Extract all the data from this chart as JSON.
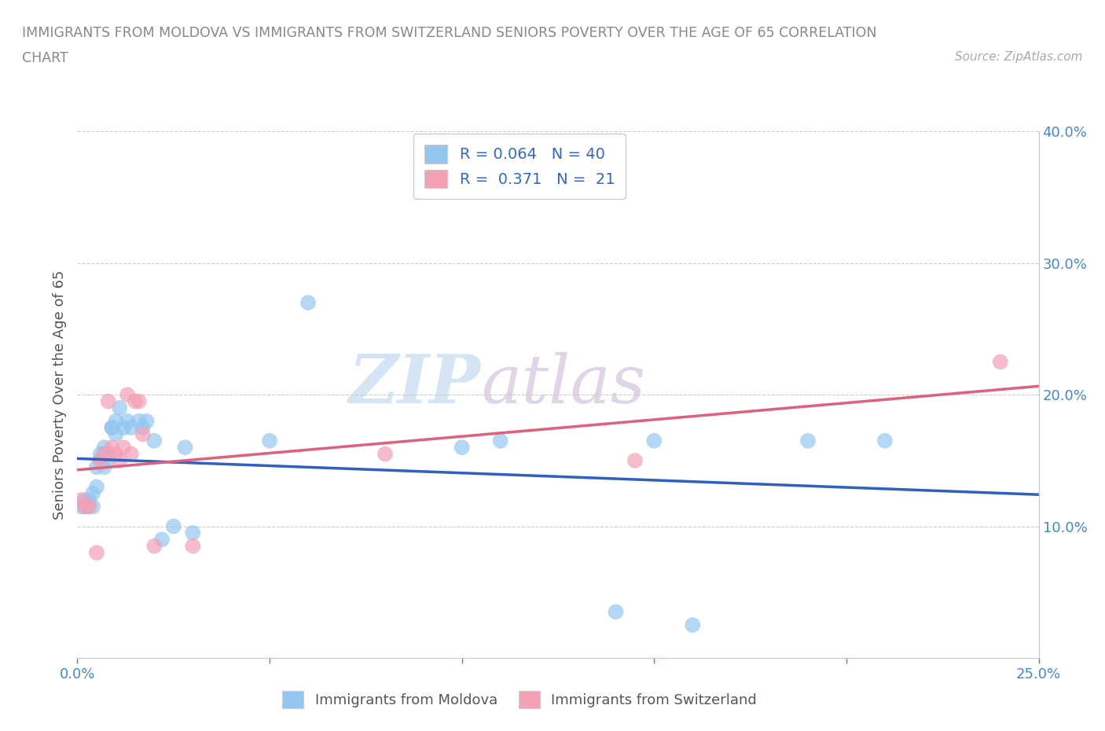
{
  "title_line1": "IMMIGRANTS FROM MOLDOVA VS IMMIGRANTS FROM SWITZERLAND SENIORS POVERTY OVER THE AGE OF 65 CORRELATION",
  "title_line2": "CHART",
  "source": "Source: ZipAtlas.com",
  "ylabel": "Seniors Poverty Over the Age of 65",
  "xlim": [
    0,
    0.25
  ],
  "ylim": [
    0,
    0.4
  ],
  "moldova_R": 0.064,
  "moldova_N": 40,
  "switzerland_R": 0.371,
  "switzerland_N": 21,
  "moldova_color": "#93c6f0",
  "switzerland_color": "#f5a0b5",
  "moldova_line_color": "#3060c0",
  "switzerland_line_color": "#e06080",
  "legend_label_moldova": "Immigrants from Moldova",
  "legend_label_switzerland": "Immigrants from Switzerland",
  "watermark_zip": "ZIP",
  "watermark_atlas": "atlas",
  "moldova_x": [
    0.001,
    0.002,
    0.002,
    0.003,
    0.003,
    0.004,
    0.004,
    0.005,
    0.005,
    0.006,
    0.006,
    0.007,
    0.007,
    0.008,
    0.008,
    0.009,
    0.009,
    0.01,
    0.01,
    0.011,
    0.012,
    0.013,
    0.014,
    0.016,
    0.017,
    0.018,
    0.02,
    0.022,
    0.025,
    0.028,
    0.03,
    0.05,
    0.06,
    0.1,
    0.11,
    0.14,
    0.15,
    0.16,
    0.19,
    0.21
  ],
  "moldova_y": [
    0.115,
    0.115,
    0.12,
    0.115,
    0.12,
    0.115,
    0.125,
    0.13,
    0.145,
    0.15,
    0.155,
    0.16,
    0.145,
    0.15,
    0.155,
    0.175,
    0.175,
    0.17,
    0.18,
    0.19,
    0.175,
    0.18,
    0.175,
    0.18,
    0.175,
    0.18,
    0.165,
    0.09,
    0.1,
    0.16,
    0.095,
    0.165,
    0.27,
    0.16,
    0.165,
    0.035,
    0.165,
    0.025,
    0.165,
    0.165
  ],
  "switzerland_x": [
    0.001,
    0.002,
    0.003,
    0.005,
    0.006,
    0.007,
    0.008,
    0.009,
    0.01,
    0.011,
    0.012,
    0.013,
    0.014,
    0.015,
    0.016,
    0.017,
    0.02,
    0.03,
    0.08,
    0.145,
    0.24
  ],
  "switzerland_y": [
    0.12,
    0.115,
    0.115,
    0.08,
    0.15,
    0.155,
    0.195,
    0.16,
    0.155,
    0.15,
    0.16,
    0.2,
    0.155,
    0.195,
    0.195,
    0.17,
    0.085,
    0.085,
    0.155,
    0.15,
    0.225
  ]
}
